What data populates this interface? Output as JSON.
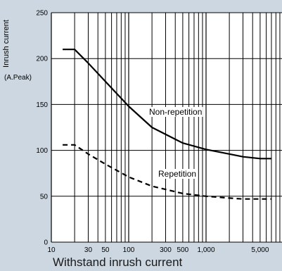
{
  "chart_data": {
    "type": "line",
    "title": "",
    "xlabel": "Withstand inrush current",
    "ylabel": "Inrush current",
    "yunit": "(A.Peak)",
    "xscale": "log",
    "xlim": [
      10,
      10000
    ],
    "ylim": [
      0,
      250
    ],
    "x_tick_labels": [
      "10",
      "30",
      "50",
      "100",
      "300",
      "500",
      "1,000",
      "5,000"
    ],
    "x_ticks": [
      10,
      30,
      50,
      100,
      300,
      500,
      1000,
      5000
    ],
    "y_ticks": [
      0,
      50,
      100,
      150,
      200,
      250
    ],
    "grid": true,
    "series": [
      {
        "name": "Non-repetition",
        "style": "solid",
        "color": "#000000",
        "x": [
          14,
          20,
          30,
          50,
          100,
          200,
          500,
          1000,
          2000,
          3000,
          5000,
          7000
        ],
        "y": [
          210,
          210,
          195,
          175,
          148,
          125,
          108,
          101,
          96,
          93,
          91,
          91
        ]
      },
      {
        "name": "Repetition",
        "style": "dashed",
        "color": "#000000",
        "x": [
          14,
          20,
          30,
          50,
          100,
          200,
          500,
          1000,
          2000,
          3000,
          5000,
          7000
        ],
        "y": [
          106,
          106,
          96,
          85,
          71,
          61,
          53,
          50,
          48,
          47,
          47,
          47
        ]
      }
    ]
  },
  "colors": {
    "background": "#cdd7e1",
    "plot_area": "#ffffff",
    "grid": "#000000"
  }
}
